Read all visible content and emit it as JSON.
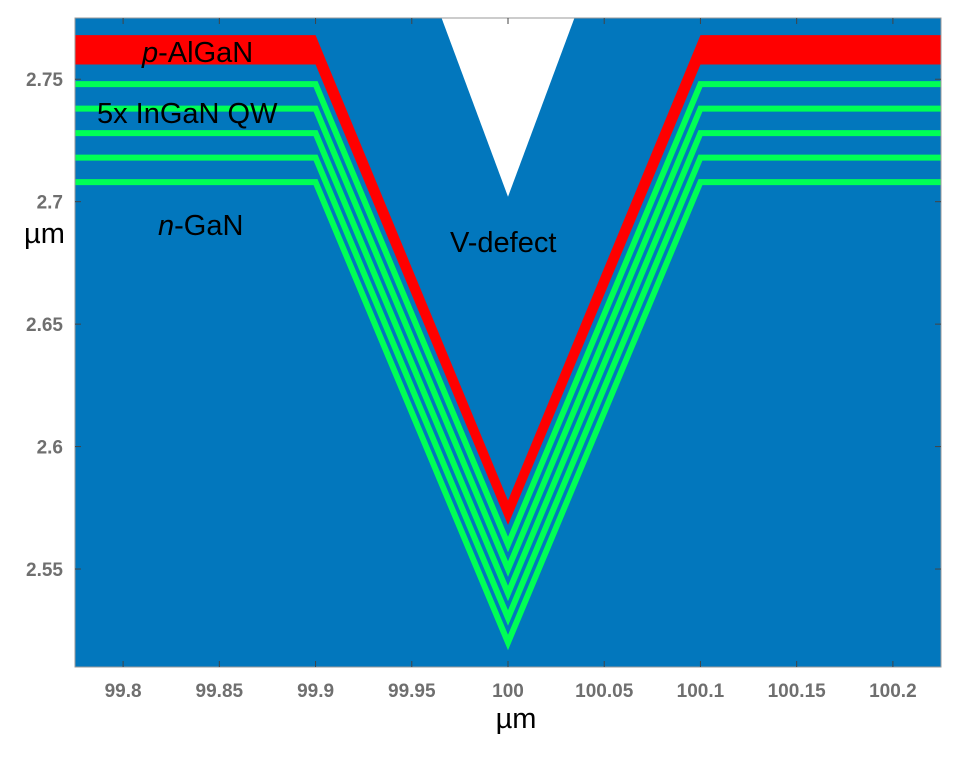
{
  "chart_data": {
    "type": "diagram",
    "x_unit": "µm",
    "y_unit": "µm",
    "xlim": [
      99.775,
      100.225
    ],
    "ylim": [
      2.51,
      2.775
    ],
    "x_ticks": [
      {
        "value": 99.8,
        "label": "99.8"
      },
      {
        "value": 99.85,
        "label": "99.85"
      },
      {
        "value": 99.9,
        "label": "99.9"
      },
      {
        "value": 99.95,
        "label": "99.95"
      },
      {
        "value": 100.0,
        "label": "100"
      },
      {
        "value": 100.05,
        "label": "100.05"
      },
      {
        "value": 100.1,
        "label": "100.1"
      },
      {
        "value": 100.15,
        "label": "100.15"
      },
      {
        "value": 100.2,
        "label": "100.2"
      }
    ],
    "y_ticks": [
      {
        "value": 2.55,
        "label": "2.55"
      },
      {
        "value": 2.6,
        "label": "2.6"
      },
      {
        "value": 2.65,
        "label": "2.65"
      },
      {
        "value": 2.7,
        "label": "2.7"
      },
      {
        "value": 2.75,
        "label": "2.75"
      }
    ],
    "colors": {
      "background": "#0277bd",
      "p_layer": "#ff0000",
      "quantum_well": "#00ff55",
      "void": "#ffffff",
      "tick": "#6f6f6f"
    },
    "defect": {
      "center_x": 100.0,
      "flat_left_x": 99.9,
      "flat_right_x": 100.1,
      "void_top_left_x": 99.962,
      "void_top_right_x": 100.038,
      "void_tip_y": 2.702
    },
    "p_layer": {
      "top_y": 2.768,
      "bottom_y": 2.756,
      "apex_top_y": 2.578,
      "apex_bottom_y": 2.568
    },
    "quantum_wells": [
      {
        "flat_y": 2.748,
        "apex_y": 2.56
      },
      {
        "flat_y": 2.738,
        "apex_y": 2.55
      },
      {
        "flat_y": 2.728,
        "apex_y": 2.54
      },
      {
        "flat_y": 2.718,
        "apex_y": 2.53
      },
      {
        "flat_y": 2.708,
        "apex_y": 2.52
      }
    ],
    "annotations": {
      "p_layer": {
        "italic": "p",
        "rest": "-AlGaN"
      },
      "qw": "5x InGaN QW",
      "n_layer": {
        "italic": "n",
        "rest": "-GaN"
      },
      "defect": "V-defect"
    }
  }
}
